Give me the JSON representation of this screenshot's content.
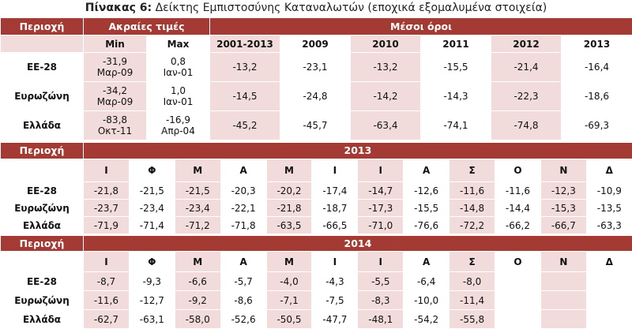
{
  "title": {
    "label": "Πίνακας 6:",
    "text": "Δείκτης Εμπιστοσύνης Καταναλωτών (εποχικά εξομαλυμένα στοιχεία)"
  },
  "averages_table": {
    "header": {
      "region": "Περιοχή",
      "extremes": "Ακραίες τιμές",
      "averages": "Μέσοι όροι"
    },
    "columns": [
      "Min",
      "Max",
      "2001-2013",
      "2009",
      "2010",
      "2011",
      "2012",
      "2013"
    ],
    "rows": [
      {
        "region": "ΕΕ-28",
        "min": {
          "value": "-31,9",
          "date": "Μαρ-09"
        },
        "max": {
          "value": "0,8",
          "date": "Ιαν-01"
        },
        "averages": [
          "-13,2",
          "-23,1",
          "-13,2",
          "-15,5",
          "-21,4",
          "-16,4"
        ]
      },
      {
        "region": "Ευρωζώνη",
        "min": {
          "value": "-34,2",
          "date": "Μαρ-09"
        },
        "max": {
          "value": "1,0",
          "date": "Ιαν-01"
        },
        "averages": [
          "-14,5",
          "-24,8",
          "-14,2",
          "-14,3",
          "-22,3",
          "-18,6"
        ]
      },
      {
        "region": "Ελλάδα",
        "min": {
          "value": "-83,8",
          "date": "Οκτ-11"
        },
        "max": {
          "value": "-16,9",
          "date": "Απρ-04"
        },
        "averages": [
          "-45,2",
          "-45,7",
          "-63,4",
          "-74,1",
          "-74,8",
          "-69,3"
        ]
      }
    ]
  },
  "monthly_tables": [
    {
      "header": {
        "region": "Περιοχή",
        "year": "2013"
      },
      "months": [
        "Ι",
        "Φ",
        "Μ",
        "Α",
        "Μ",
        "Ι",
        "Ι",
        "Α",
        "Σ",
        "Ο",
        "Ν",
        "Δ"
      ],
      "rows": [
        {
          "region": "ΕΕ-28",
          "values": [
            "-21,8",
            "-21,5",
            "-21,5",
            "-20,3",
            "-20,2",
            "-17,4",
            "-14,7",
            "-12,6",
            "-11,6",
            "-11,6",
            "-12,3",
            "-10,9"
          ]
        },
        {
          "region": "Ευρωζώνη",
          "values": [
            "-23,7",
            "-23,4",
            "-23,4",
            "-22,1",
            "-21,8",
            "-18,7",
            "-17,3",
            "-15,5",
            "-14,8",
            "-14,4",
            "-15,3",
            "-13,5"
          ]
        },
        {
          "region": "Ελλάδα",
          "values": [
            "-71,9",
            "-71,4",
            "-71,2",
            "-71,8",
            "-63,5",
            "-66,5",
            "-71,0",
            "-76,6",
            "-72,2",
            "-66,2",
            "-66,7",
            "-63,3"
          ]
        }
      ]
    },
    {
      "header": {
        "region": "Περιοχή",
        "year": "2014"
      },
      "months": [
        "Ι",
        "Φ",
        "Μ",
        "Α",
        "Μ",
        "Ι",
        "Ι",
        "Α",
        "Σ",
        "Ο",
        "Ν",
        "Δ"
      ],
      "rows": [
        {
          "region": "ΕΕ-28",
          "values": [
            "-8,7",
            "-9,3",
            "-6,6",
            "-5,7",
            "-4,0",
            "-4,3",
            "-5,5",
            "-6,4",
            "-8,0"
          ]
        },
        {
          "region": "Ευρωζώνη",
          "values": [
            "-11,6",
            "-12,7",
            "-9,2",
            "-8,6",
            "-7,1",
            "-7,5",
            "-8,3",
            "-10,0",
            "-11,4"
          ]
        },
        {
          "region": "Ελλάδα",
          "values": [
            "-62,7",
            "-63,1",
            "-58,0",
            "-52,6",
            "-50,5",
            "-47,7",
            "-48,1",
            "-54,2",
            "-55,8"
          ]
        }
      ]
    }
  ]
}
